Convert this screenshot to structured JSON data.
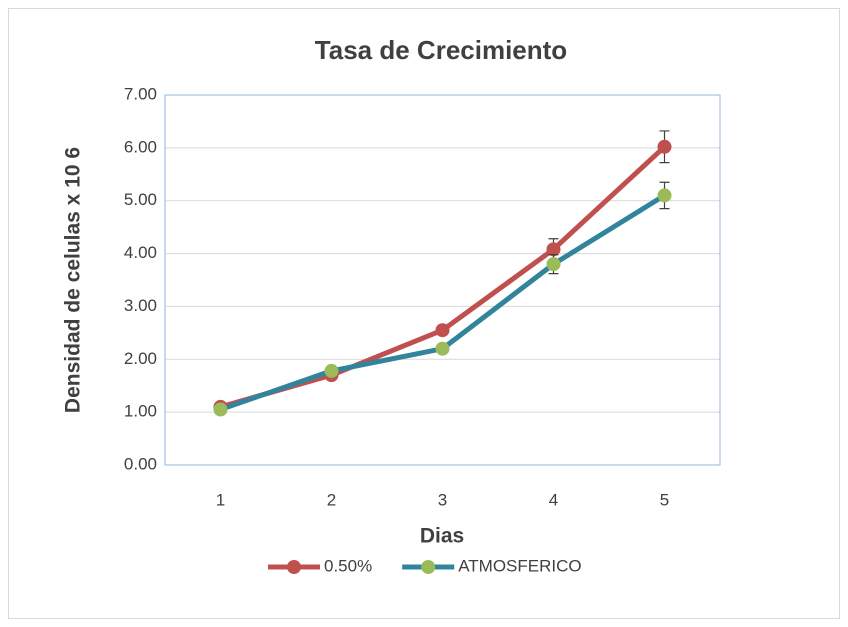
{
  "chart_data": {
    "type": "line",
    "title": "Tasa de Crecimiento",
    "x_label": "Dias",
    "y_label": "Densidad de celulas x 10 6",
    "categories": [
      "1",
      "2",
      "3",
      "4",
      "5"
    ],
    "series": [
      {
        "name": "0.50%",
        "color": "#c0504d",
        "marker_color": "#c0504d",
        "values": [
          1.1,
          1.7,
          2.55,
          4.08,
          6.02
        ],
        "errors": [
          0.05,
          0.05,
          0.08,
          0.2,
          0.3
        ]
      },
      {
        "name": "ATMOSFERICO",
        "color": "#31849b",
        "marker_color": "#9bbb59",
        "values": [
          1.05,
          1.78,
          2.2,
          3.8,
          5.1
        ],
        "errors": [
          0.05,
          0.05,
          0.08,
          0.18,
          0.25
        ]
      }
    ],
    "ylim": [
      0,
      7
    ],
    "yticks": [
      {
        "value": 0,
        "label": "0.00"
      },
      {
        "value": 1,
        "label": "1.00"
      },
      {
        "value": 2,
        "label": "2.00"
      },
      {
        "value": 3,
        "label": "3.00"
      },
      {
        "value": 4,
        "label": "4.00"
      },
      {
        "value": 5,
        "label": "5.00"
      },
      {
        "value": 6,
        "label": "6.00"
      },
      {
        "value": 7,
        "label": "7.00"
      }
    ],
    "grid": true,
    "legend": "bottom"
  }
}
